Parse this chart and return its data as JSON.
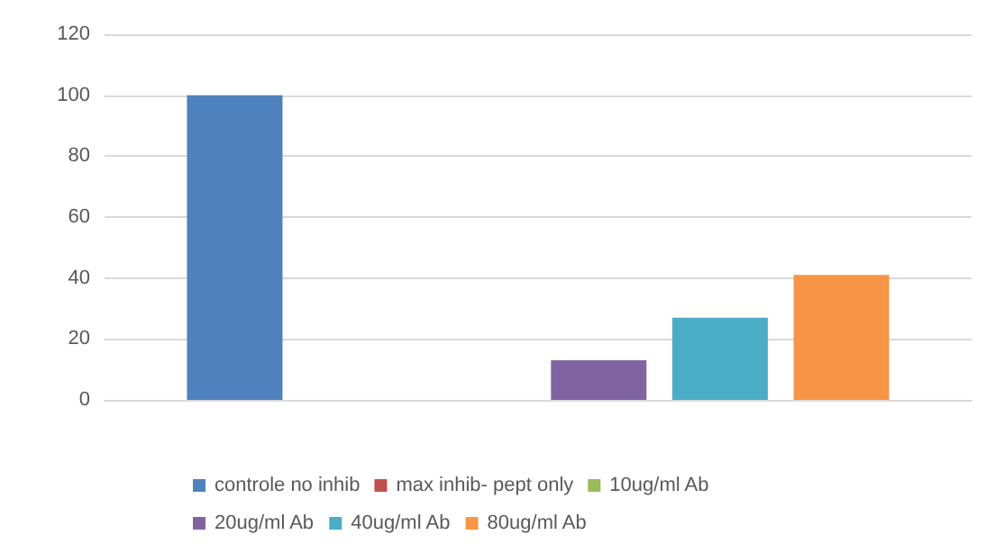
{
  "chart_data": {
    "type": "bar",
    "categories": [
      null
    ],
    "series": [
      {
        "name": "controle no inhib",
        "color": "#4f81bd",
        "values": [
          100
        ]
      },
      {
        "name": "max inhib- pept only",
        "color": "#c0504d",
        "values": [
          0
        ]
      },
      {
        "name": "10ug/ml Ab",
        "color": "#9bbb59",
        "values": [
          0
        ]
      },
      {
        "name": "20ug/ml Ab",
        "color": "#8064a2",
        "values": [
          13
        ]
      },
      {
        "name": "40ug/ml Ab",
        "color": "#4bacc6",
        "values": [
          27
        ]
      },
      {
        "name": "80ug/ml Ab",
        "color": "#f79646",
        "values": [
          41
        ]
      }
    ],
    "ylim": [
      0,
      120
    ],
    "yticks": [
      0,
      20,
      40,
      60,
      80,
      100,
      120
    ],
    "grid": "y",
    "legend": "bottom"
  }
}
